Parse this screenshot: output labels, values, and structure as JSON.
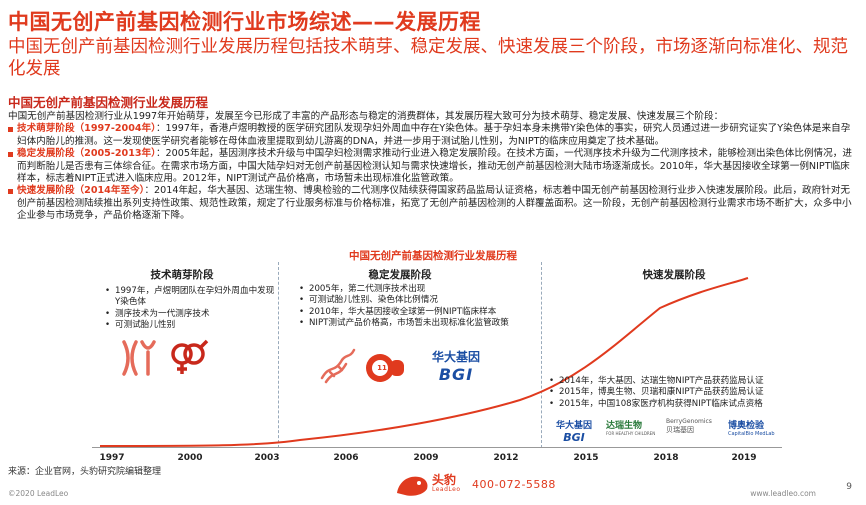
{
  "header": {
    "title": "中国无创产前基因检测行业市场综述——发展历程",
    "subtitle": "中国无创产前基因检测行业发展历程包括技术萌芽、稳定发展、快速发展三个阶段，市场逐渐向标准化、规范化发展"
  },
  "section": {
    "heading": "中国无创产前基因检测行业发展历程",
    "intro": "中国无创产前基因检测行业从1997年开始萌芽，发展至今已形成了丰富的产品形态与稳定的消费群体，其发展历程大致可分为技术萌芽、稳定发展、快速发展三个阶段：",
    "paragraphs": [
      {
        "label": "技术萌芽阶段（1997-2004年）",
        "text": "：1997年，香港卢煜明教授的医学研究团队发现孕妇外周血中存在Y染色体。基于孕妇本身未携带Y染色体的事实，研究人员通过进一步研究证实了Y染色体是来自孕妇体内胎儿的推测。这一发现使医学研究者能够在母体血液里提取到幼儿游离的DNA，并进一步用于测试胎儿性别，为NIPT的临床应用奠定了技术基础。"
      },
      {
        "label": "稳定发展阶段（2005-2013年）",
        "text": "：2005年起，基因测序技术升级与中国孕妇检测需求推动行业进入稳定发展阶段。在技术方面，一代测序技术升级为二代测序技术，能够检测出染色体比例情况，进而判断胎儿是否患有三体综合征。在需求市场方面，中国大陆孕妇对无创产前基因检测认知与需求快速增长，推动无创产前基因检测大陆市场逐渐成长。2010年，华大基因接收全球第一例NIPT临床样本，标志着NIPT正式进入临床应用。2012年，NIPT测试产品价格高，市场暂未出现标准化监管政策。"
      },
      {
        "label": "快速发展阶段（2014年至今）",
        "text": "：2014年起，华大基因、达瑞生物、博奥检验的二代测序仪陆续获得国家药品监局认证资格，标志着中国无创产前基因检测行业步入快速发展阶段。此后，政府针对无创产前基因检测陆续推出系列支持性政策、规范性政策，规定了行业服务标准与价格标准，拓宽了无创产前基因检测的人群覆盖面积。这一阶段，无创产前基因检测行业需求市场不断扩大，众多中小企业参与市场竞争，产品价格逐渐下降。"
      }
    ]
  },
  "chart": {
    "title": "中国无创产前基因检测行业发展历程",
    "years": [
      "1997",
      "2000",
      "2003",
      "2006",
      "2009",
      "2012",
      "2015",
      "2018",
      "2019"
    ],
    "phases": [
      {
        "name": "技术萌芽阶段",
        "items": [
          "1997年，卢煜明团队在孕妇外周血中发现Y染色体",
          "测序技术为一代测序技术",
          "可测试胎儿性别"
        ]
      },
      {
        "name": "稳定发展阶段",
        "items": [
          "2005年，第二代测序技术出现",
          "可测试胎儿性别、染色体比例情况",
          "2010年，华大基因接收全球第一例NIPT临床样本",
          "NIPT测试产品价格高，市场暂未出现标准化监管政策"
        ]
      },
      {
        "name": "快速发展阶段",
        "items": [
          "2014年，华大基因、达瑞生物NIPT产品获药监局认证",
          "2015年，博奥生物、贝瑞和康NIPT产品获药监局认证",
          "2015年，中国108家医疗机构获得NIPT临床试点资格"
        ]
      }
    ],
    "logos": {
      "bgi_cn": "华大基因",
      "bgi_en": "BGI",
      "daan": "达瑞生物",
      "daan_sub": "FOR HEALTHY CHILDREN",
      "berry_en": "BerryGenomics",
      "berry_cn": "贝瑞基因",
      "capital_cn": "博奥检验",
      "capital_en": "CapitalBio MedLab",
      "number_badge": "11"
    },
    "colors": {
      "accent": "#e03a1e",
      "curve": "#e03a1e"
    }
  },
  "footer": {
    "source": "来源：企业官网，头豹研究院编辑整理",
    "copyright": "©2020 LeadLeo",
    "brand_cn": "头豹",
    "brand_en": "LeadLeo",
    "phone": "400-072-5588",
    "website": "www.leadleo.com",
    "page": "9"
  }
}
